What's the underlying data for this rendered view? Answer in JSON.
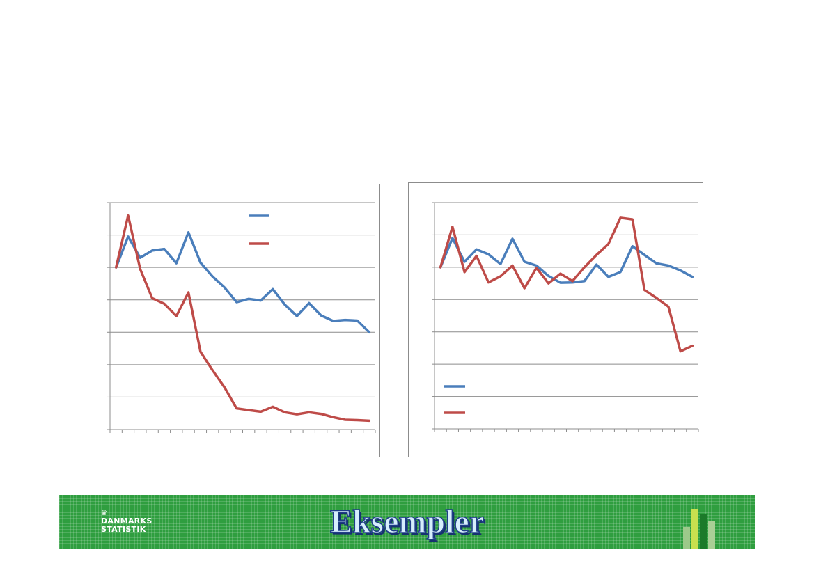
{
  "footer": {
    "title": "Eksempler",
    "logo_line1": "DANMARKS",
    "logo_line2": "STATISTIK",
    "logo_icon": "crown-icon",
    "band_color": "#2f9e3f"
  },
  "chart_data": [
    {
      "type": "line",
      "title": "",
      "xlabel": "",
      "ylabel": "",
      "grid": true,
      "legend_position": "top-right",
      "x_count": 23,
      "ylim": [
        0,
        7
      ],
      "y_gridlines": [
        0,
        1,
        2,
        3,
        4,
        5,
        6,
        7
      ],
      "series": [
        {
          "color": "#4a7ebb",
          "values": [
            5.0,
            5.95,
            5.3,
            5.52,
            5.57,
            5.13,
            6.08,
            5.15,
            4.72,
            4.38,
            3.93,
            4.03,
            3.98,
            4.33,
            3.85,
            3.5,
            3.9,
            3.52,
            3.35,
            3.38,
            3.36,
            3.0
          ]
        },
        {
          "color": "#be4b48",
          "values": [
            5.0,
            6.6,
            4.95,
            4.05,
            3.88,
            3.5,
            4.23,
            2.4,
            1.83,
            1.3,
            0.65,
            0.6,
            0.55,
            0.7,
            0.53,
            0.47,
            0.53,
            0.48,
            0.38,
            0.3,
            0.29,
            0.27
          ]
        }
      ]
    },
    {
      "type": "line",
      "title": "",
      "xlabel": "",
      "ylabel": "",
      "grid": true,
      "legend_position": "bottom-left",
      "x_count": 23,
      "ylim": [
        0,
        7
      ],
      "y_gridlines": [
        0,
        1,
        2,
        3,
        4,
        5,
        6,
        7
      ],
      "series": [
        {
          "color": "#4a7ebb",
          "values": [
            5.0,
            5.9,
            5.17,
            5.55,
            5.4,
            5.1,
            5.88,
            5.17,
            5.05,
            4.73,
            4.52,
            4.53,
            4.57,
            5.08,
            4.7,
            4.85,
            5.65,
            5.38,
            5.12,
            5.05,
            4.9,
            4.7
          ]
        },
        {
          "color": "#be4b48",
          "values": [
            5.0,
            6.25,
            4.85,
            5.35,
            4.53,
            4.72,
            5.05,
            4.35,
            4.98,
            4.5,
            4.8,
            4.57,
            5.0,
            5.38,
            5.72,
            6.53,
            6.48,
            4.3,
            4.05,
            3.78,
            2.4,
            2.57
          ]
        }
      ]
    }
  ]
}
